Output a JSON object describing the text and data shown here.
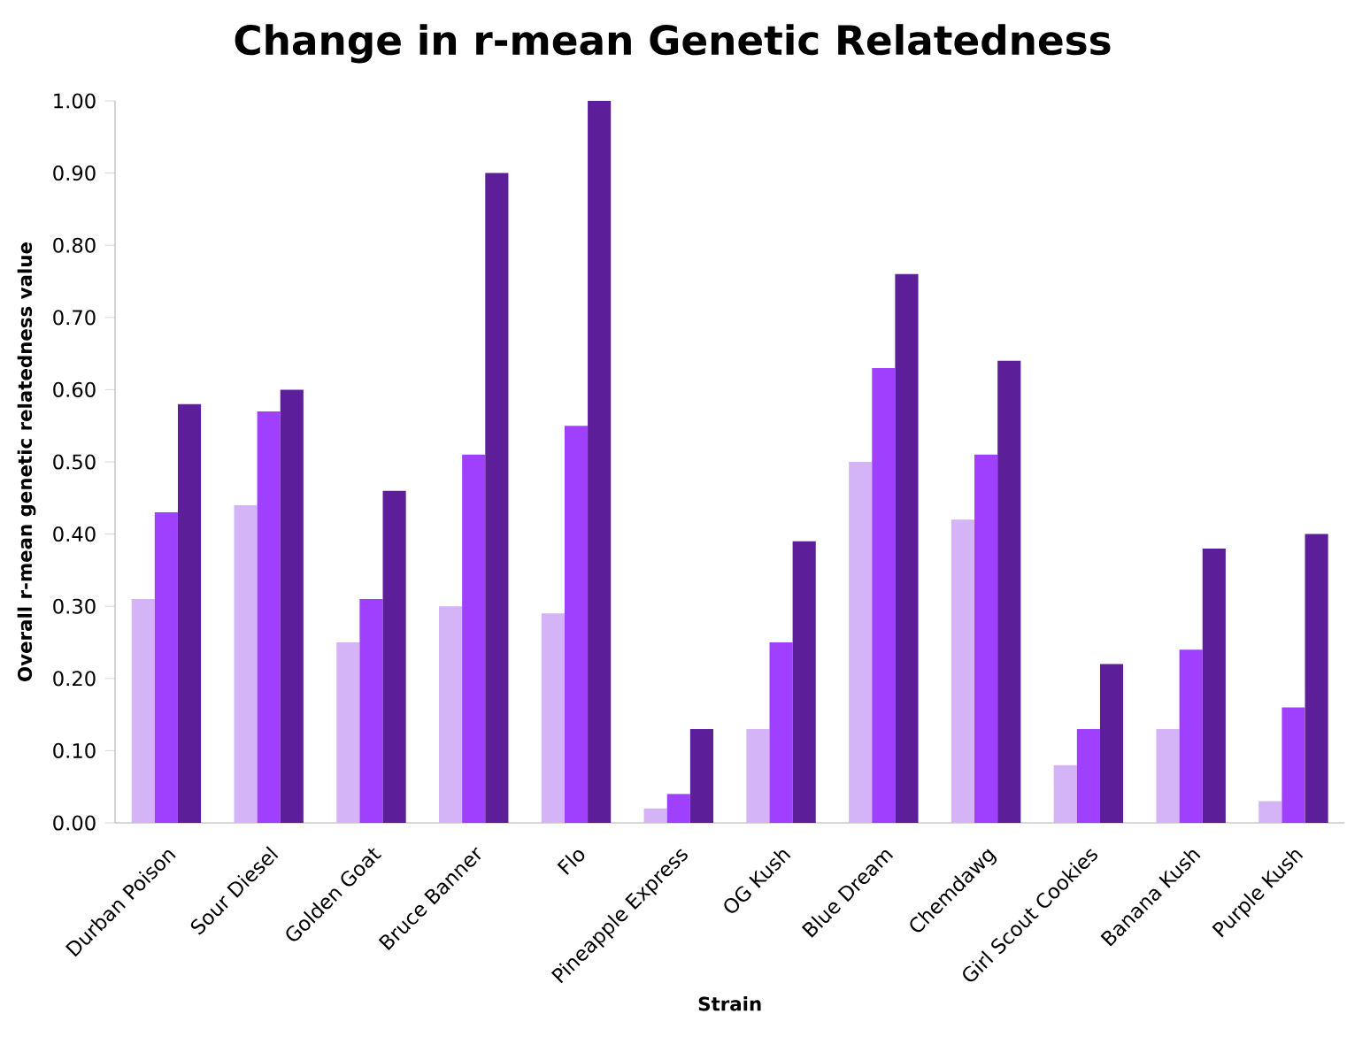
{
  "chart_data": {
    "type": "bar",
    "title": "Change in r-mean Genetic Relatedness",
    "xlabel": "Strain",
    "ylabel": "Overall r-mean genetic relatedness  value",
    "categories": [
      "Durban Poison",
      "Sour Diesel",
      "Golden Goat",
      "Bruce Banner",
      "Flo",
      "Pineapple Express",
      "OG Kush",
      "Blue Dream",
      "Chemdawg",
      "Girl Scout Cookies",
      "Banana Kush",
      "Purple Kush"
    ],
    "series": [
      {
        "color": "#d5b3f7",
        "values": [
          0.31,
          0.44,
          0.25,
          0.3,
          0.29,
          0.02,
          0.13,
          0.5,
          0.42,
          0.08,
          0.13,
          0.03
        ]
      },
      {
        "color": "#a040ff",
        "values": [
          0.43,
          0.57,
          0.31,
          0.51,
          0.55,
          0.04,
          0.25,
          0.63,
          0.51,
          0.13,
          0.24,
          0.16
        ]
      },
      {
        "color": "#5c1e99",
        "values": [
          0.58,
          0.6,
          0.46,
          0.9,
          1.0,
          0.13,
          0.39,
          0.76,
          0.64,
          0.22,
          0.38,
          0.4
        ]
      }
    ],
    "ylim": [
      0,
      1
    ],
    "yticks": [
      {
        "value": 0,
        "label": "0.00"
      },
      {
        "value": 0.1,
        "label": "0.10"
      },
      {
        "value": 0.2,
        "label": "0.20"
      },
      {
        "value": 0.3,
        "label": "0.30"
      },
      {
        "value": 0.4,
        "label": "0.40"
      },
      {
        "value": 0.5,
        "label": "0.50"
      },
      {
        "value": 0.6,
        "label": "0.60"
      },
      {
        "value": 0.7,
        "label": "0.70"
      },
      {
        "value": 0.8,
        "label": "0.80"
      },
      {
        "value": 0.9,
        "label": "0.90"
      },
      {
        "value": 1.0,
        "label": "1.00"
      }
    ],
    "grid": false
  }
}
